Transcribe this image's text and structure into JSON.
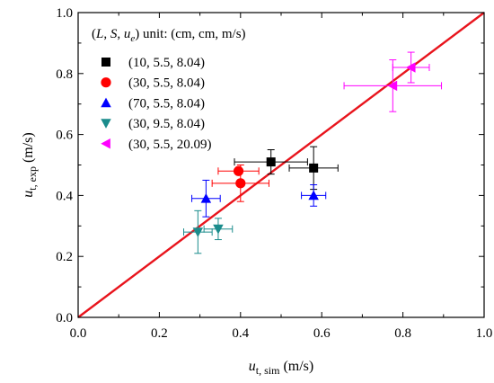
{
  "chart_data": {
    "type": "scatter",
    "xlabel": {
      "main": "u",
      "sub": "t, sim",
      "unit": " (m/s)"
    },
    "ylabel": {
      "main": "u",
      "sub": "t, exp",
      "unit": " (m/s)"
    },
    "xlim": [
      0.0,
      1.0
    ],
    "ylim": [
      0.0,
      1.0
    ],
    "xticks": [
      "0.0",
      "0.2",
      "0.4",
      "0.6",
      "0.8",
      "1.0"
    ],
    "yticks": [
      "0.0",
      "0.2",
      "0.4",
      "0.6",
      "0.8",
      "1.0"
    ],
    "grid": false,
    "legend_position": "top-left",
    "legend_title": "(L, S, u_e) unit: (cm, cm, m/s)",
    "reference_line": {
      "x": [
        0,
        1
      ],
      "y": [
        0,
        1
      ],
      "color": "#e8141c"
    },
    "series": [
      {
        "name": "(10, 5.5, 8.04)",
        "marker": "square",
        "color": "#000000",
        "points": [
          {
            "x": 0.475,
            "y": 0.51,
            "xerr": 0.09,
            "yerr": 0.04
          },
          {
            "x": 0.58,
            "y": 0.49,
            "xerr": 0.06,
            "yerr": 0.07
          }
        ]
      },
      {
        "name": "(30, 5.5, 8.04)",
        "marker": "circle",
        "color": "#ff0000",
        "points": [
          {
            "x": 0.395,
            "y": 0.48,
            "xerr": 0.05,
            "yerr": 0.0
          },
          {
            "x": 0.4,
            "y": 0.44,
            "xerr": 0.07,
            "yerr": 0.06
          }
        ]
      },
      {
        "name": "(70, 5.5, 8.04)",
        "marker": "triangle-up",
        "color": "#0000ff",
        "points": [
          {
            "x": 0.315,
            "y": 0.39,
            "xerr": 0.035,
            "yerr": 0.06
          },
          {
            "x": 0.58,
            "y": 0.4,
            "xerr": 0.03,
            "yerr": 0.035
          }
        ]
      },
      {
        "name": "(30, 9.5, 8.04)",
        "marker": "triangle-down",
        "color": "#1a8c8c",
        "points": [
          {
            "x": 0.295,
            "y": 0.28,
            "xerr": 0.035,
            "yerr": 0.07
          },
          {
            "x": 0.345,
            "y": 0.29,
            "xerr": 0.035,
            "yerr": 0.035
          }
        ]
      },
      {
        "name": "(30, 5.5, 20.09)",
        "marker": "triangle-left",
        "color": "#ff00ff",
        "points": [
          {
            "x": 0.775,
            "y": 0.76,
            "xerr": 0.12,
            "yerr": 0.085
          },
          {
            "x": 0.82,
            "y": 0.82,
            "xerr": 0.045,
            "yerr": 0.05
          }
        ]
      }
    ]
  }
}
